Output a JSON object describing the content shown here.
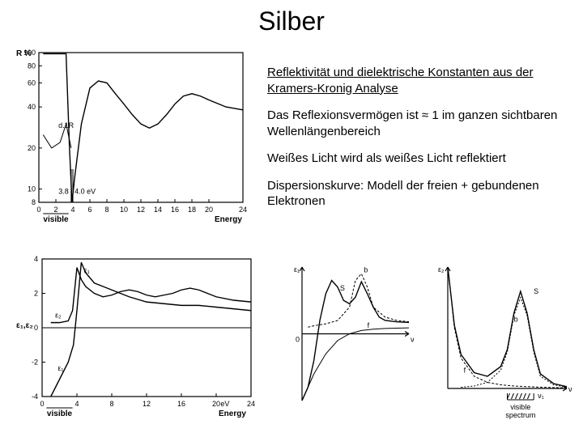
{
  "title": "Silber",
  "text": {
    "heading": "Reflektivität und dielektrische Konstanten aus der Kramers-Kronig Analyse",
    "p1": "Das Reflexionsvermögen ist ≈ 1 im ganzen sichtbaren Wellenlängenbereich",
    "p2": "Weißes Licht wird als weißes Licht reflektiert",
    "p3": "Dispersionskurve: Modell der freien + gebundenen Elektronen"
  },
  "chart_top": {
    "type": "line",
    "ylabel": "R %",
    "xlabel": "Energy",
    "xticks": [
      0,
      2,
      4,
      6,
      8,
      10,
      12,
      14,
      16,
      18,
      20,
      24
    ],
    "yticks": [
      8,
      10,
      20,
      40,
      60,
      80,
      100
    ],
    "visible_label": "visible",
    "annotations": {
      "d1R": "d.1R",
      "ev38": "3.8",
      "ev40": "4.0 eV"
    },
    "curve_R": [
      [
        0.5,
        98
      ],
      [
        2,
        98
      ],
      [
        3.2,
        98
      ],
      [
        3.6,
        20
      ],
      [
        3.9,
        8
      ],
      [
        4.2,
        12
      ],
      [
        5,
        30
      ],
      [
        6,
        55
      ],
      [
        7,
        62
      ],
      [
        8,
        60
      ],
      [
        9,
        50
      ],
      [
        10,
        42
      ],
      [
        11,
        35
      ],
      [
        12,
        30
      ],
      [
        13,
        28
      ],
      [
        14,
        30
      ],
      [
        15,
        35
      ],
      [
        16,
        42
      ],
      [
        17,
        48
      ],
      [
        18,
        50
      ],
      [
        19,
        48
      ],
      [
        20,
        45
      ],
      [
        22,
        40
      ],
      [
        24,
        38
      ]
    ],
    "curve_dR": [
      [
        0.5,
        25
      ],
      [
        1.5,
        20
      ],
      [
        2.5,
        22
      ],
      [
        3.2,
        30
      ],
      [
        3.8,
        20
      ]
    ],
    "line_color": "#000000",
    "background_color": "#ffffff",
    "xlim": [
      0,
      24
    ],
    "ylim_log_like": [
      8,
      100
    ]
  },
  "chart_mid": {
    "type": "line",
    "ylabel": "ε₁,ε₂",
    "xlabel": "Energy",
    "xticks": [
      0,
      4,
      8,
      12,
      16,
      20,
      24
    ],
    "yticks": [
      -4,
      -2,
      0,
      2,
      4
    ],
    "visible_label": "visible",
    "ev_label": "eV",
    "eps1_label": "ε₁",
    "eps2_label": "ε₂",
    "curve_eps1": [
      [
        1,
        -4
      ],
      [
        2,
        -3
      ],
      [
        3,
        -2
      ],
      [
        3.6,
        -1
      ],
      [
        4,
        1
      ],
      [
        4.5,
        3.8
      ],
      [
        5,
        3.2
      ],
      [
        6,
        2.6
      ],
      [
        7,
        2.4
      ],
      [
        8,
        2.2
      ],
      [
        10,
        1.8
      ],
      [
        12,
        1.5
      ],
      [
        14,
        1.4
      ],
      [
        16,
        1.3
      ],
      [
        18,
        1.3
      ],
      [
        20,
        1.2
      ],
      [
        22,
        1.1
      ],
      [
        24,
        1.0
      ]
    ],
    "curve_eps2": [
      [
        1,
        0.3
      ],
      [
        2,
        0.3
      ],
      [
        3,
        0.4
      ],
      [
        3.5,
        1
      ],
      [
        4,
        3.5
      ],
      [
        4.5,
        2.8
      ],
      [
        5,
        2.4
      ],
      [
        6,
        2.0
      ],
      [
        7,
        1.8
      ],
      [
        8,
        1.9
      ],
      [
        9,
        2.1
      ],
      [
        10,
        2.2
      ],
      [
        11,
        2.1
      ],
      [
        12,
        1.9
      ],
      [
        13,
        1.8
      ],
      [
        14,
        1.9
      ],
      [
        15,
        2.0
      ],
      [
        16,
        2.2
      ],
      [
        17,
        2.3
      ],
      [
        18,
        2.2
      ],
      [
        19,
        2.0
      ],
      [
        20,
        1.8
      ],
      [
        22,
        1.6
      ],
      [
        24,
        1.5
      ]
    ],
    "line_color": "#000000",
    "xlim": [
      0,
      24
    ],
    "ylim": [
      -4,
      4
    ]
  },
  "chart_br1": {
    "type": "line",
    "ylabel": "ε₁",
    "xlabel": "ν",
    "labels": {
      "s": "S",
      "f": "f",
      "b": "b"
    },
    "curve_f": [
      [
        0,
        -10
      ],
      [
        1,
        -6
      ],
      [
        2,
        -3
      ],
      [
        3,
        -1
      ],
      [
        4,
        0
      ],
      [
        5,
        0.5
      ],
      [
        6,
        0.7
      ],
      [
        7,
        0.8
      ],
      [
        9,
        0.9
      ]
    ],
    "curve_s": [
      [
        0,
        -10
      ],
      [
        0.5,
        -8
      ],
      [
        1,
        -4
      ],
      [
        1.5,
        2
      ],
      [
        2,
        6
      ],
      [
        2.5,
        8
      ],
      [
        3,
        7
      ],
      [
        3.5,
        5
      ],
      [
        4,
        4.5
      ],
      [
        4.5,
        5.5
      ],
      [
        5,
        7.8
      ],
      [
        5.5,
        6
      ],
      [
        6,
        4
      ],
      [
        6.5,
        2.5
      ],
      [
        7,
        2
      ],
      [
        8,
        1.8
      ],
      [
        9,
        1.7
      ]
    ],
    "curve_b": [
      [
        0.5,
        1
      ],
      [
        1,
        1.2
      ],
      [
        2,
        1.5
      ],
      [
        3,
        2
      ],
      [
        4,
        4
      ],
      [
        4.5,
        8
      ],
      [
        5,
        9
      ],
      [
        5.5,
        7
      ],
      [
        6,
        4
      ],
      [
        7,
        2.5
      ],
      [
        8,
        2
      ],
      [
        9,
        1.8
      ]
    ],
    "line_color": "#000000",
    "tick0": "0"
  },
  "chart_br2": {
    "type": "line",
    "ylabel": "ε₂",
    "xlabel": "ν",
    "visible_label": "visible spectrum",
    "labels": {
      "s": "S",
      "b": "b",
      "f": "f",
      "nu1": "ν₁"
    },
    "curve_f": [
      [
        0,
        10
      ],
      [
        0.5,
        5
      ],
      [
        1,
        2.5
      ],
      [
        2,
        1
      ],
      [
        3,
        0.5
      ],
      [
        4,
        0.3
      ],
      [
        5,
        0.2
      ],
      [
        7,
        0.1
      ],
      [
        9,
        0.05
      ]
    ],
    "curve_b": [
      [
        1,
        0.1
      ],
      [
        2,
        0.2
      ],
      [
        3,
        0.5
      ],
      [
        4,
        1.5
      ],
      [
        4.5,
        3
      ],
      [
        5,
        6
      ],
      [
        5.5,
        7.5
      ],
      [
        6,
        6
      ],
      [
        6.5,
        3
      ],
      [
        7,
        1
      ],
      [
        8,
        0.3
      ],
      [
        9,
        0.1
      ]
    ],
    "curve_s": [
      [
        0,
        10
      ],
      [
        0.5,
        5.2
      ],
      [
        1,
        2.8
      ],
      [
        2,
        1.3
      ],
      [
        3,
        1
      ],
      [
        4,
        1.8
      ],
      [
        4.5,
        3.2
      ],
      [
        5,
        6.2
      ],
      [
        5.5,
        8
      ],
      [
        6,
        6.2
      ],
      [
        6.5,
        3.2
      ],
      [
        7,
        1.2
      ],
      [
        8,
        0.4
      ],
      [
        9,
        0.15
      ]
    ],
    "line_color": "#000000"
  }
}
